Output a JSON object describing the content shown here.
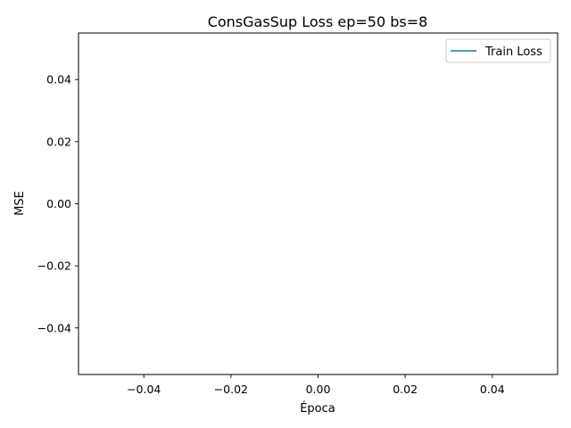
{
  "chart_data": {
    "type": "line",
    "title": "ConsGasSup Loss ep=50 bs=8",
    "xlabel": "Época",
    "ylabel": "MSE",
    "xlim": [
      -0.055,
      0.055
    ],
    "ylim": [
      -0.055,
      0.055
    ],
    "x_ticks": [
      -0.04,
      -0.02,
      0.0,
      0.02,
      0.04
    ],
    "x_tick_labels": [
      "−0.04",
      "−0.02",
      "0.00",
      "0.02",
      "0.04"
    ],
    "y_ticks": [
      -0.04,
      -0.02,
      0.0,
      0.02,
      0.04
    ],
    "y_tick_labels": [
      "−0.04",
      "−0.02",
      "0.00",
      "0.02",
      "0.04"
    ],
    "grid": false,
    "legend_position": "top-right",
    "series": [
      {
        "name": "Train Loss",
        "color": "#1f77b4",
        "x": [],
        "y": []
      }
    ]
  }
}
